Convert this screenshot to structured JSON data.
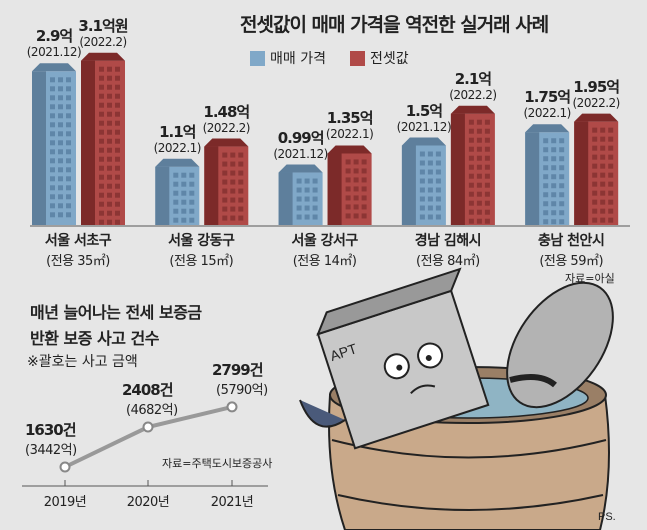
{
  "bar_chart": {
    "title": "전셋값이 매매 가격을 역전한 실거래 사례",
    "legend": [
      {
        "label": "매매 가격",
        "color": "#80a8c8"
      },
      {
        "label": "전셋값",
        "color": "#b04a48"
      }
    ],
    "source": "자료=아실"
  },
  "line_chart": {
    "title_line1": "매년 늘어나는 전세 보증금",
    "title_line2": "반환 보증 사고 건수",
    "note": "※괄호는 사고 금액",
    "source": "자료=주택도시보증공사"
  },
  "chart_data": [
    {
      "type": "bar",
      "title": "전셋값이 매매 가격을 역전한 실거래 사례",
      "categories": [
        "서울 서초구",
        "서울 강동구",
        "서울 강서구",
        "경남 김해시",
        "충남 천안시"
      ],
      "areas": [
        "(전용 35㎡)",
        "(전용 15㎡)",
        "(전용 14㎡)",
        "(전용 84㎡)",
        "(전용 59㎡)"
      ],
      "unit": "억원",
      "series": [
        {
          "name": "매매 가격",
          "values": [
            2.9,
            1.1,
            0.99,
            1.5,
            1.75
          ],
          "labels": [
            "2.9억",
            "1.1억",
            "0.99억",
            "1.5억",
            "1.75억"
          ],
          "dates": [
            "(2021.12)",
            "(2022.1)",
            "(2021.12)",
            "(2021.12)",
            "(2022.1)"
          ]
        },
        {
          "name": "전셋값",
          "values": [
            3.1,
            1.48,
            1.35,
            2.1,
            1.95
          ],
          "labels": [
            "3.1억원",
            "1.48억",
            "1.35억",
            "2.1억",
            "1.95억"
          ],
          "dates": [
            "(2022.2)",
            "(2022.2)",
            "(2022.1)",
            "(2022.2)",
            "(2022.2)"
          ]
        }
      ]
    },
    {
      "type": "line",
      "title": "매년 늘어나는 전세 보증금 반환 보증 사고 건수",
      "x": [
        "2019년",
        "2020년",
        "2021년"
      ],
      "series": [
        {
          "name": "사고 건수",
          "values": [
            1630,
            2408,
            2799
          ],
          "labels": [
            "1630건",
            "2408건",
            "2799건"
          ],
          "amounts": [
            "(3442억)",
            "(4682억)",
            "(5790억)"
          ]
        }
      ]
    }
  ],
  "illustration": {
    "building_sign": "APT",
    "signature": "PS."
  }
}
